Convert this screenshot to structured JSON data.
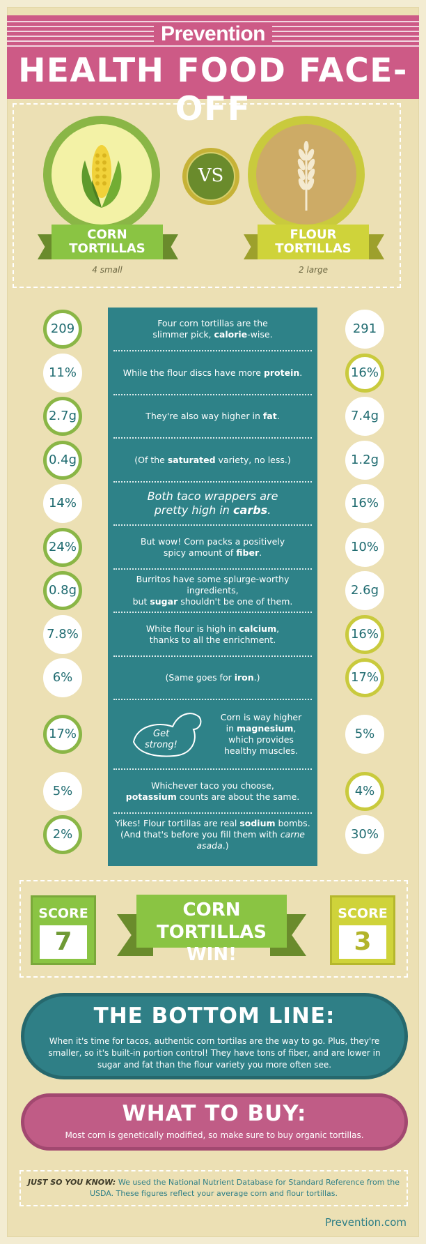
{
  "header": {
    "brand": "Prevention",
    "title": "HEALTH FOOD FACE-OFF"
  },
  "contenders": {
    "corn": {
      "line1": "CORN",
      "line2": "TORTILLAS",
      "serving": "4 small",
      "icon": "corn-icon"
    },
    "flour": {
      "line1": "FLOUR",
      "line2": "TORTILLAS",
      "serving": "2 large",
      "icon": "wheat-icon"
    },
    "vs": "VS"
  },
  "rows": [
    {
      "left": "209",
      "right": "291",
      "text_a": "Four corn tortillas are the",
      "text_b": "slimmer pick, ",
      "bold": "calorie",
      "text_c": "-wise."
    },
    {
      "left": "11%",
      "right": "16%",
      "text_a": "While the flour discs have more ",
      "bold": "protein",
      "text_c": "."
    },
    {
      "left": "2.7g",
      "right": "7.4g",
      "text_a": "They're also way higher in ",
      "bold": "fat",
      "text_c": "."
    },
    {
      "left": "0.4g",
      "right": "1.2g",
      "text_a": "(Of the ",
      "bold": "saturated",
      "text_c": " variety, no less.)"
    },
    {
      "left": "14%",
      "right": "16%",
      "text_a": "Both taco wrappers are",
      "text_b": "pretty high in ",
      "bold": "carbs",
      "text_c": "."
    },
    {
      "left": "24%",
      "right": "10%",
      "text_a": "But wow! Corn packs a positively",
      "text_b": "spicy amount of ",
      "bold": "fiber",
      "text_c": "."
    },
    {
      "left": "0.8g",
      "right": "2.6g",
      "text_a": "Burritos have some splurge-worthy ingredients,",
      "text_b": "but ",
      "bold": "sugar",
      "text_c": " shouldn't be one of them."
    },
    {
      "left": "7.8%",
      "right": "16%",
      "text_a": "White flour is high in ",
      "bold": "calcium",
      "text_c": ",",
      "text_d": "thanks to all the enrichment."
    },
    {
      "left": "6%",
      "right": "17%",
      "text_a": "(Same goes for ",
      "bold": "iron",
      "text_c": ".)"
    },
    {
      "left": "17%",
      "right": "5%",
      "text_a": "Corn is way higher",
      "text_b": "in ",
      "bold": "magnesium",
      "text_c": ",",
      "text_d": "which provides",
      "text_e": "healthy muscles.",
      "callout": "Get strong!"
    },
    {
      "left": "5%",
      "right": "4%",
      "text_a": "Whichever taco you choose,",
      "bold": "potassium",
      "text_c": " counts are about the same."
    },
    {
      "left": "2%",
      "right": "30%",
      "text_a": "Yikes! Flour tortillas are real ",
      "bold": "sodium",
      "text_c": " bombs.",
      "text_d": "(And that's before you fill them with ",
      "italic": "carne asada",
      "text_e": ".)"
    }
  ],
  "score": {
    "label": "SCORE",
    "corn": "7",
    "flour": "3",
    "winner_line1": "CORN",
    "winner_line2": "TORTILLAS WIN!"
  },
  "bottom_line": {
    "title": "THE BOTTOM LINE:",
    "text": "When it's time for tacos, authentic corn tortilas are the way to go. Plus, they're smaller, so it's built-in portion control! They have tons of fiber, and are lower in sugar and fat than the flour variety you more often see."
  },
  "what_to_buy": {
    "title": "WHAT TO BUY:",
    "text": "Most corn is genetically modified, so make sure to buy organic tortillas."
  },
  "note": {
    "label": "JUST SO YOU KNOW:",
    "text": " We used the National Nutrient Database for Standard Reference from the USDA. These figures reflect your average corn and flour tortillas."
  },
  "site": "Prevention.com",
  "colors": {
    "pink": "#cd5a86",
    "teal": "#2e8288",
    "green": "#8ac443",
    "yellow": "#cfd33a",
    "cream": "#ece0b4"
  }
}
